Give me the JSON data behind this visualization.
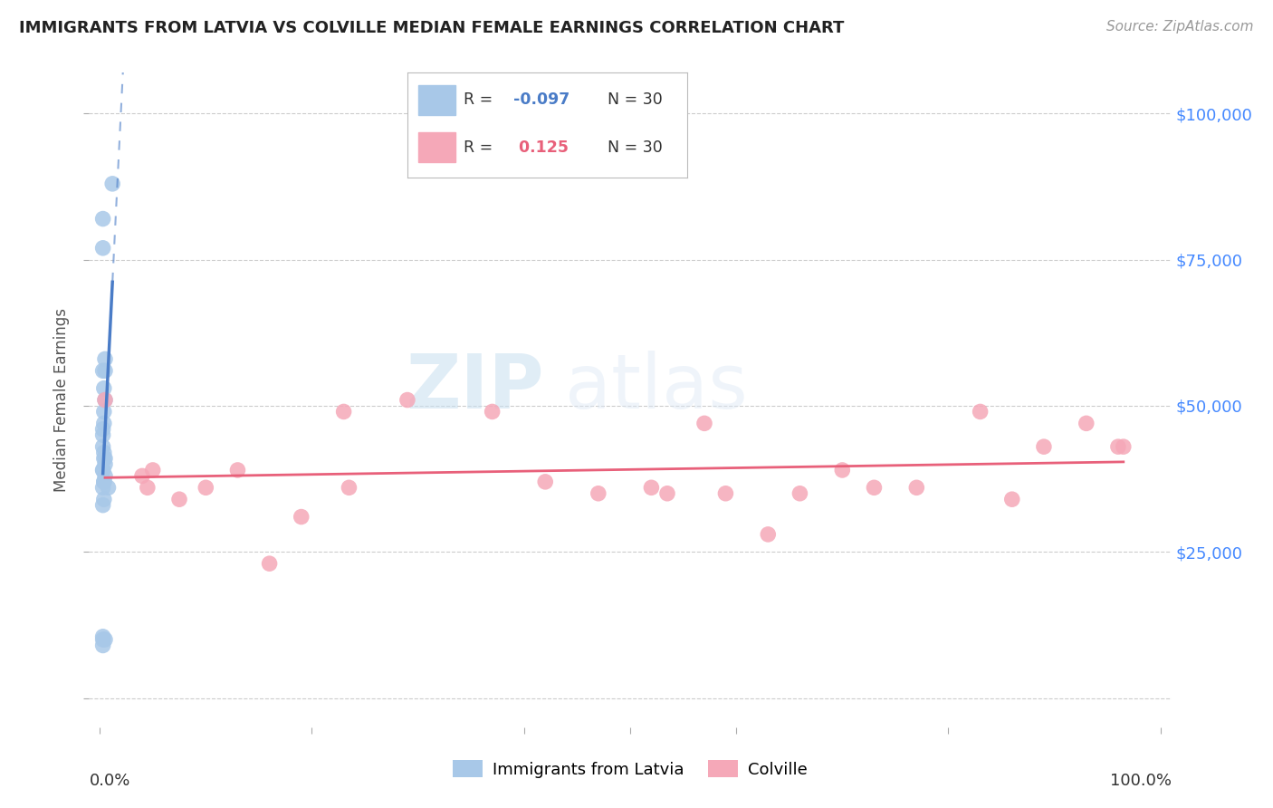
{
  "title": "IMMIGRANTS FROM LATVIA VS COLVILLE MEDIAN FEMALE EARNINGS CORRELATION CHART",
  "source": "Source: ZipAtlas.com",
  "ylabel": "Median Female Earnings",
  "yticks": [
    0,
    25000,
    50000,
    75000,
    100000
  ],
  "ytick_labels": [
    "",
    "$25,000",
    "$50,000",
    "$75,000",
    "$100,000"
  ],
  "xlim": [
    -0.01,
    1.01
  ],
  "ylim": [
    -5000,
    107000
  ],
  "watermark_zip": "ZIP",
  "watermark_atlas": "atlas",
  "legend_label_blue": "Immigrants from Latvia",
  "legend_label_pink": "Colville",
  "blue_color": "#a8c8e8",
  "pink_color": "#f5a8b8",
  "blue_line_color": "#4a7cc7",
  "pink_line_color": "#e8607a",
  "blue_scatter_x": [
    0.003,
    0.012,
    0.003,
    0.003,
    0.005,
    0.005,
    0.004,
    0.005,
    0.004,
    0.004,
    0.003,
    0.003,
    0.003,
    0.004,
    0.005,
    0.004,
    0.005,
    0.003,
    0.003,
    0.005,
    0.004,
    0.004,
    0.003,
    0.008,
    0.004,
    0.003,
    0.005,
    0.003,
    0.003,
    0.003
  ],
  "blue_scatter_y": [
    82000,
    88000,
    77000,
    56000,
    58000,
    56000,
    53000,
    51000,
    49000,
    47000,
    46000,
    45000,
    43000,
    42000,
    41000,
    41000,
    40000,
    39000,
    39000,
    38000,
    37000,
    37000,
    36000,
    36000,
    34000,
    33000,
    10000,
    10000,
    9000,
    10500
  ],
  "pink_scatter_x": [
    0.005,
    0.04,
    0.045,
    0.05,
    0.075,
    0.1,
    0.13,
    0.16,
    0.19,
    0.23,
    0.235,
    0.29,
    0.37,
    0.42,
    0.47,
    0.52,
    0.535,
    0.57,
    0.59,
    0.63,
    0.66,
    0.7,
    0.73,
    0.77,
    0.83,
    0.86,
    0.89,
    0.93,
    0.96,
    0.965
  ],
  "pink_scatter_y": [
    51000,
    38000,
    36000,
    39000,
    34000,
    36000,
    39000,
    23000,
    31000,
    49000,
    36000,
    51000,
    49000,
    37000,
    35000,
    36000,
    35000,
    47000,
    35000,
    28000,
    35000,
    39000,
    36000,
    36000,
    49000,
    34000,
    43000,
    47000,
    43000,
    43000
  ],
  "background_color": "#ffffff",
  "grid_color": "#cccccc",
  "blue_R": "-0.097",
  "pink_R": "0.125",
  "N": "30"
}
